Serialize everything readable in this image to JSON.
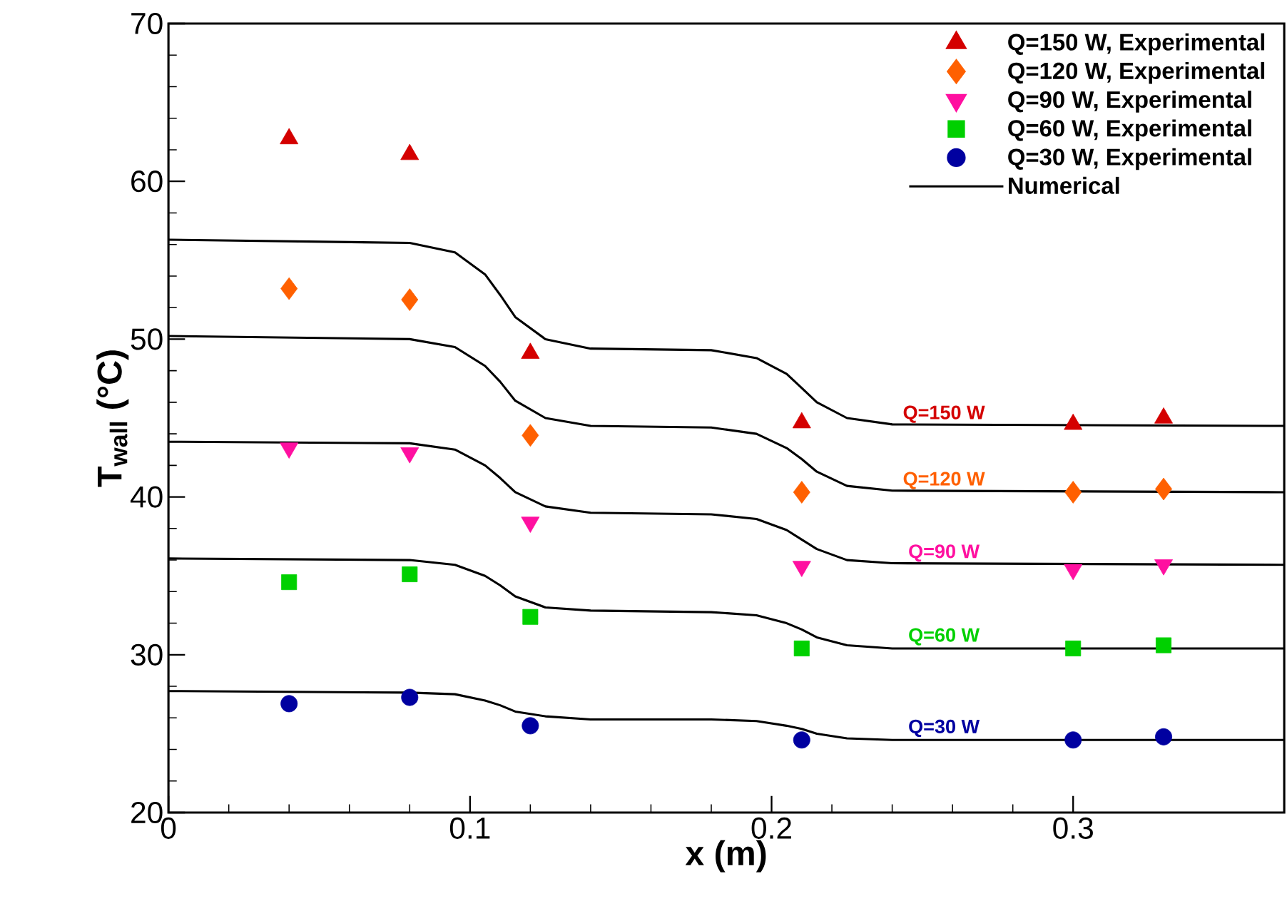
{
  "chart_data": {
    "type": "scatter",
    "xlabel": "x (m)",
    "ylabel": "T$_{wall}$ (°C)",
    "xlim": [
      0,
      0.37
    ],
    "ylim": [
      20,
      70
    ],
    "xticks": [
      0,
      0.1,
      0.2,
      0.3
    ],
    "yticks": [
      20,
      30,
      40,
      50,
      60,
      70
    ],
    "grid": false,
    "legend": "top right",
    "series": [
      {
        "name": "Q=150 W, Experimental",
        "type": "scatter",
        "marker": "triangle",
        "color": "#d40000",
        "x": [
          0.04,
          0.08,
          0.12,
          0.21,
          0.3,
          0.33
        ],
        "values": [
          62.7,
          61.7,
          49.1,
          44.7,
          44.6,
          45.0
        ]
      },
      {
        "name": "Q=120 W, Experimental",
        "type": "scatter",
        "marker": "diamond",
        "color": "#ff6000",
        "x": [
          0.04,
          0.08,
          0.12,
          0.21,
          0.3,
          0.33
        ],
        "values": [
          53.2,
          52.5,
          43.9,
          40.3,
          40.3,
          40.5
        ]
      },
      {
        "name": "Q=90  W, Experimental",
        "type": "scatter",
        "marker": "triangle-down",
        "color": "#ff10a0",
        "x": [
          0.04,
          0.08,
          0.12,
          0.21,
          0.3,
          0.33
        ],
        "values": [
          43.1,
          42.8,
          38.4,
          35.6,
          35.4,
          35.7
        ]
      },
      {
        "name": "Q=60  W, Experimental",
        "type": "scatter",
        "marker": "square",
        "color": "#00d000",
        "x": [
          0.04,
          0.08,
          0.12,
          0.21,
          0.3,
          0.33
        ],
        "values": [
          34.6,
          35.1,
          32.4,
          30.4,
          30.4,
          30.6
        ]
      },
      {
        "name": "Q=30  W, Experimental",
        "type": "scatter",
        "marker": "circle",
        "color": "#0000a0",
        "x": [
          0.04,
          0.08,
          0.12,
          0.21,
          0.3,
          0.33
        ],
        "values": [
          26.9,
          27.3,
          25.5,
          24.6,
          24.6,
          24.8
        ]
      },
      {
        "name": "Numerical",
        "type": "line",
        "marker": "none",
        "line_style": "solid",
        "color": "#000000",
        "x": [
          0,
          0.08,
          0.095,
          0.105,
          0.11,
          0.115,
          0.125,
          0.14,
          0.18,
          0.195,
          0.205,
          0.21,
          0.215,
          0.225,
          0.24,
          0.37
        ],
        "values": [
          56.3,
          56.1,
          55.5,
          54.1,
          52.8,
          51.4,
          50.0,
          49.4,
          49.3,
          48.8,
          47.8,
          46.9,
          46.0,
          45.0,
          44.6,
          44.5
        ]
      },
      {
        "type": "line",
        "marker": "none",
        "line_style": "solid",
        "color": "#000000",
        "x": [
          0,
          0.08,
          0.095,
          0.105,
          0.11,
          0.115,
          0.125,
          0.14,
          0.18,
          0.195,
          0.205,
          0.21,
          0.215,
          0.225,
          0.24,
          0.37
        ],
        "values": [
          50.2,
          50.0,
          49.5,
          48.3,
          47.3,
          46.1,
          45.0,
          44.5,
          44.4,
          44.0,
          43.1,
          42.4,
          41.6,
          40.7,
          40.4,
          40.3
        ]
      },
      {
        "type": "line",
        "marker": "none",
        "line_style": "solid",
        "color": "#000000",
        "x": [
          0,
          0.08,
          0.095,
          0.105,
          0.11,
          0.115,
          0.125,
          0.14,
          0.18,
          0.195,
          0.205,
          0.21,
          0.215,
          0.225,
          0.24,
          0.37
        ],
        "values": [
          43.5,
          43.4,
          43.0,
          42.0,
          41.2,
          40.3,
          39.4,
          39.0,
          38.9,
          38.6,
          37.9,
          37.3,
          36.7,
          36.0,
          35.8,
          35.7
        ]
      },
      {
        "type": "line",
        "marker": "none",
        "line_style": "solid",
        "color": "#000000",
        "x": [
          0,
          0.08,
          0.095,
          0.105,
          0.11,
          0.115,
          0.125,
          0.14,
          0.18,
          0.195,
          0.205,
          0.21,
          0.215,
          0.225,
          0.24,
          0.37
        ],
        "values": [
          36.1,
          36.0,
          35.7,
          35.0,
          34.4,
          33.7,
          33.0,
          32.8,
          32.7,
          32.5,
          32.0,
          31.6,
          31.1,
          30.6,
          30.4,
          30.4
        ]
      },
      {
        "type": "line",
        "marker": "none",
        "line_style": "solid",
        "color": "#000000",
        "x": [
          0,
          0.08,
          0.095,
          0.105,
          0.11,
          0.115,
          0.125,
          0.14,
          0.18,
          0.195,
          0.205,
          0.21,
          0.215,
          0.225,
          0.24,
          0.37
        ],
        "values": [
          27.7,
          27.6,
          27.5,
          27.1,
          26.8,
          26.4,
          26.1,
          25.9,
          25.9,
          25.8,
          25.5,
          25.3,
          25.0,
          24.7,
          24.6,
          24.6
        ]
      }
    ],
    "annotations": [
      "Q=150 W",
      "Q=120 W",
      "Q=90 W",
      "Q=60 W",
      "Q=30 W"
    ]
  }
}
